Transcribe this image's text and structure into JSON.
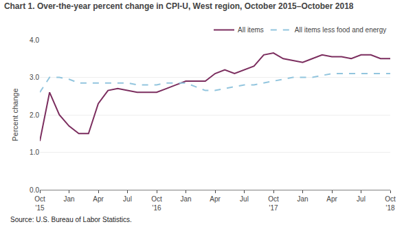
{
  "chart_data": {
    "type": "line",
    "title": "Chart 1. Over-the-year percent change in CPI-U, West region, October 2015–October 2018",
    "ylabel": "Percent change",
    "annotations": [
      "Source: U.S. Bureau of Labor Statistics."
    ],
    "categories": [
      "Oct\n'15",
      null,
      null,
      "Jan",
      null,
      null,
      "Apr",
      null,
      null,
      "Jul",
      null,
      null,
      "Oct\n'16",
      null,
      null,
      "Jan",
      null,
      null,
      "Apr",
      null,
      null,
      "Jul",
      null,
      null,
      "Oct\n'17",
      null,
      null,
      "Jan",
      null,
      null,
      "Apr",
      null,
      null,
      "Jul",
      null,
      null,
      "Oct\n'18"
    ],
    "series": [
      {
        "name": "All items",
        "color": "#7B2D5E",
        "line_style": "solid",
        "values": [
          1.3,
          2.6,
          2.0,
          1.7,
          1.5,
          1.5,
          2.3,
          2.65,
          2.7,
          2.65,
          2.6,
          2.6,
          2.6,
          2.7,
          2.8,
          2.9,
          2.9,
          2.9,
          3.1,
          3.2,
          3.1,
          3.2,
          3.3,
          3.6,
          3.65,
          3.5,
          3.45,
          3.4,
          3.5,
          3.6,
          3.55,
          3.55,
          3.5,
          3.6,
          3.6,
          3.5,
          3.5
        ]
      },
      {
        "name": "All items less food and energy",
        "color": "#92C5DE",
        "line_style": "dashed",
        "values": [
          2.6,
          3.0,
          3.0,
          2.95,
          2.85,
          2.85,
          2.85,
          2.85,
          2.85,
          2.85,
          2.8,
          2.8,
          2.8,
          2.85,
          2.85,
          2.85,
          2.75,
          2.65,
          2.65,
          2.7,
          2.75,
          2.8,
          2.8,
          2.85,
          2.9,
          2.95,
          3.0,
          3.0,
          3.0,
          3.05,
          3.1,
          3.1,
          3.1,
          3.1,
          3.1,
          3.1,
          3.1
        ]
      }
    ],
    "ylim": [
      0.0,
      4.0
    ],
    "yticks": [
      {
        "value": 0.0,
        "label": "0.0"
      },
      {
        "value": 1.0,
        "label": "1.0"
      },
      {
        "value": 2.0,
        "label": "2.0"
      },
      {
        "value": 3.0,
        "label": "3.0"
      },
      {
        "value": 4.0,
        "label": "4.0"
      }
    ],
    "grid": true,
    "legend": "upper right"
  }
}
